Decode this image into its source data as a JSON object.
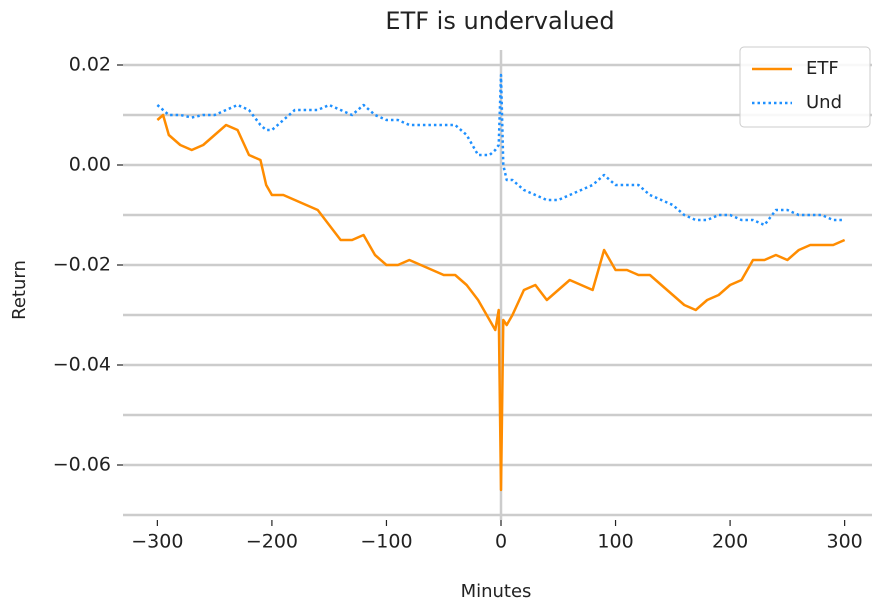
{
  "chart_data": {
    "type": "line",
    "title": "ETF is undervalued",
    "x_label": "Minutes",
    "y_label": "Return",
    "x": [
      -300,
      -295,
      -290,
      -280,
      -270,
      -260,
      -250,
      -240,
      -230,
      -220,
      -210,
      -205,
      -200,
      -190,
      -180,
      -170,
      -160,
      -150,
      -140,
      -130,
      -120,
      -110,
      -100,
      -90,
      -80,
      -70,
      -60,
      -50,
      -40,
      -30,
      -20,
      -10,
      -5,
      -2,
      0,
      2,
      5,
      10,
      20,
      30,
      40,
      50,
      60,
      70,
      80,
      90,
      100,
      110,
      120,
      130,
      140,
      150,
      160,
      170,
      180,
      190,
      200,
      210,
      220,
      230,
      240,
      250,
      260,
      270,
      280,
      290,
      300
    ],
    "series": [
      {
        "name": "ETF",
        "color": "#ff8c00",
        "linestyle": "solid",
        "values": [
          0.009,
          0.01,
          0.006,
          0.004,
          0.003,
          0.004,
          0.006,
          0.008,
          0.007,
          0.002,
          0.001,
          -0.004,
          -0.006,
          -0.006,
          -0.007,
          -0.008,
          -0.009,
          -0.012,
          -0.015,
          -0.015,
          -0.014,
          -0.018,
          -0.02,
          -0.02,
          -0.019,
          -0.02,
          -0.021,
          -0.022,
          -0.022,
          -0.024,
          -0.027,
          -0.031,
          -0.033,
          -0.029,
          -0.065,
          -0.031,
          -0.032,
          -0.03,
          -0.025,
          -0.024,
          -0.027,
          -0.025,
          -0.023,
          -0.024,
          -0.025,
          -0.017,
          -0.021,
          -0.021,
          -0.022,
          -0.022,
          -0.024,
          -0.026,
          -0.028,
          -0.029,
          -0.027,
          -0.026,
          -0.024,
          -0.023,
          -0.019,
          -0.019,
          -0.018,
          -0.019,
          -0.017,
          -0.016,
          -0.016,
          -0.016,
          -0.015
        ]
      },
      {
        "name": "Und",
        "color": "#1e90ff",
        "linestyle": "dotted",
        "values": [
          0.012,
          0.011,
          0.01,
          0.01,
          0.0095,
          0.01,
          0.01,
          0.011,
          0.012,
          0.011,
          0.008,
          0.007,
          0.007,
          0.009,
          0.011,
          0.011,
          0.011,
          0.012,
          0.011,
          0.01,
          0.012,
          0.01,
          0.009,
          0.009,
          0.008,
          0.008,
          0.008,
          0.008,
          0.008,
          0.006,
          0.002,
          0.002,
          0.003,
          0.004,
          0.018,
          0.0,
          -0.003,
          -0.003,
          -0.005,
          -0.006,
          -0.007,
          -0.007,
          -0.006,
          -0.005,
          -0.004,
          -0.002,
          -0.004,
          -0.004,
          -0.004,
          -0.006,
          -0.007,
          -0.008,
          -0.01,
          -0.011,
          -0.011,
          -0.01,
          -0.01,
          -0.011,
          -0.011,
          -0.012,
          -0.009,
          -0.009,
          -0.01,
          -0.01,
          -0.01,
          -0.011,
          -0.011
        ]
      }
    ],
    "xlim": [
      -330,
      330
    ],
    "ylim": [
      -0.071,
      0.023
    ],
    "xticks": [
      {
        "value": -300,
        "label": "−300"
      },
      {
        "value": -200,
        "label": "−200"
      },
      {
        "value": -100,
        "label": "−100"
      },
      0,
      100,
      200,
      300
    ],
    "yticks": [
      0.02,
      {
        "value": 0,
        "label": "0.00"
      },
      {
        "value": -0.02,
        "label": "−0.02"
      },
      {
        "value": -0.04,
        "label": "−0.04"
      },
      {
        "value": -0.06,
        "label": "−0.06"
      }
    ],
    "minor_yticks": [
      0.01,
      -0.01,
      -0.03,
      -0.05,
      -0.07
    ],
    "grid": true,
    "vline": 0,
    "legend": "upper right"
  }
}
